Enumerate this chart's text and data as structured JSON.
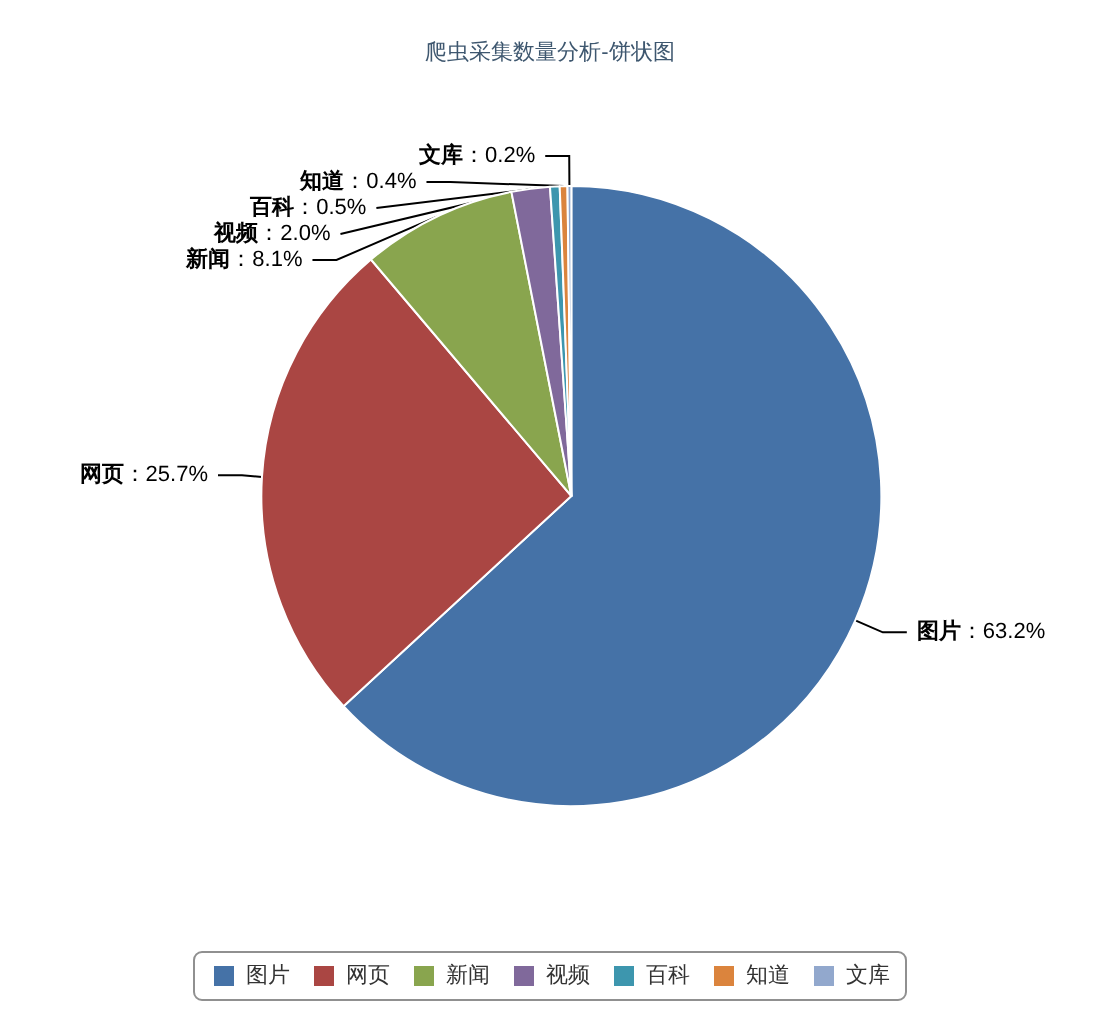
{
  "chart_data": {
    "type": "pie",
    "title": "爬虫采集数量分析-饼状图",
    "categories": [
      "图片",
      "网页",
      "新闻",
      "视频",
      "百科",
      "知道",
      "文库"
    ],
    "values": [
      63.2,
      25.7,
      8.1,
      2.0,
      0.5,
      0.4,
      0.2
    ],
    "value_labels": [
      "：63.2%",
      "：25.7%",
      "：8.1%",
      "：2.0%",
      "：0.5%",
      "：0.4%",
      "：0.2%"
    ],
    "colors": [
      "#4572a7",
      "#aa4643",
      "#89a54e",
      "#80699b",
      "#3d96ae",
      "#db843d",
      "#92a8cd"
    ],
    "legend": "bottom"
  }
}
